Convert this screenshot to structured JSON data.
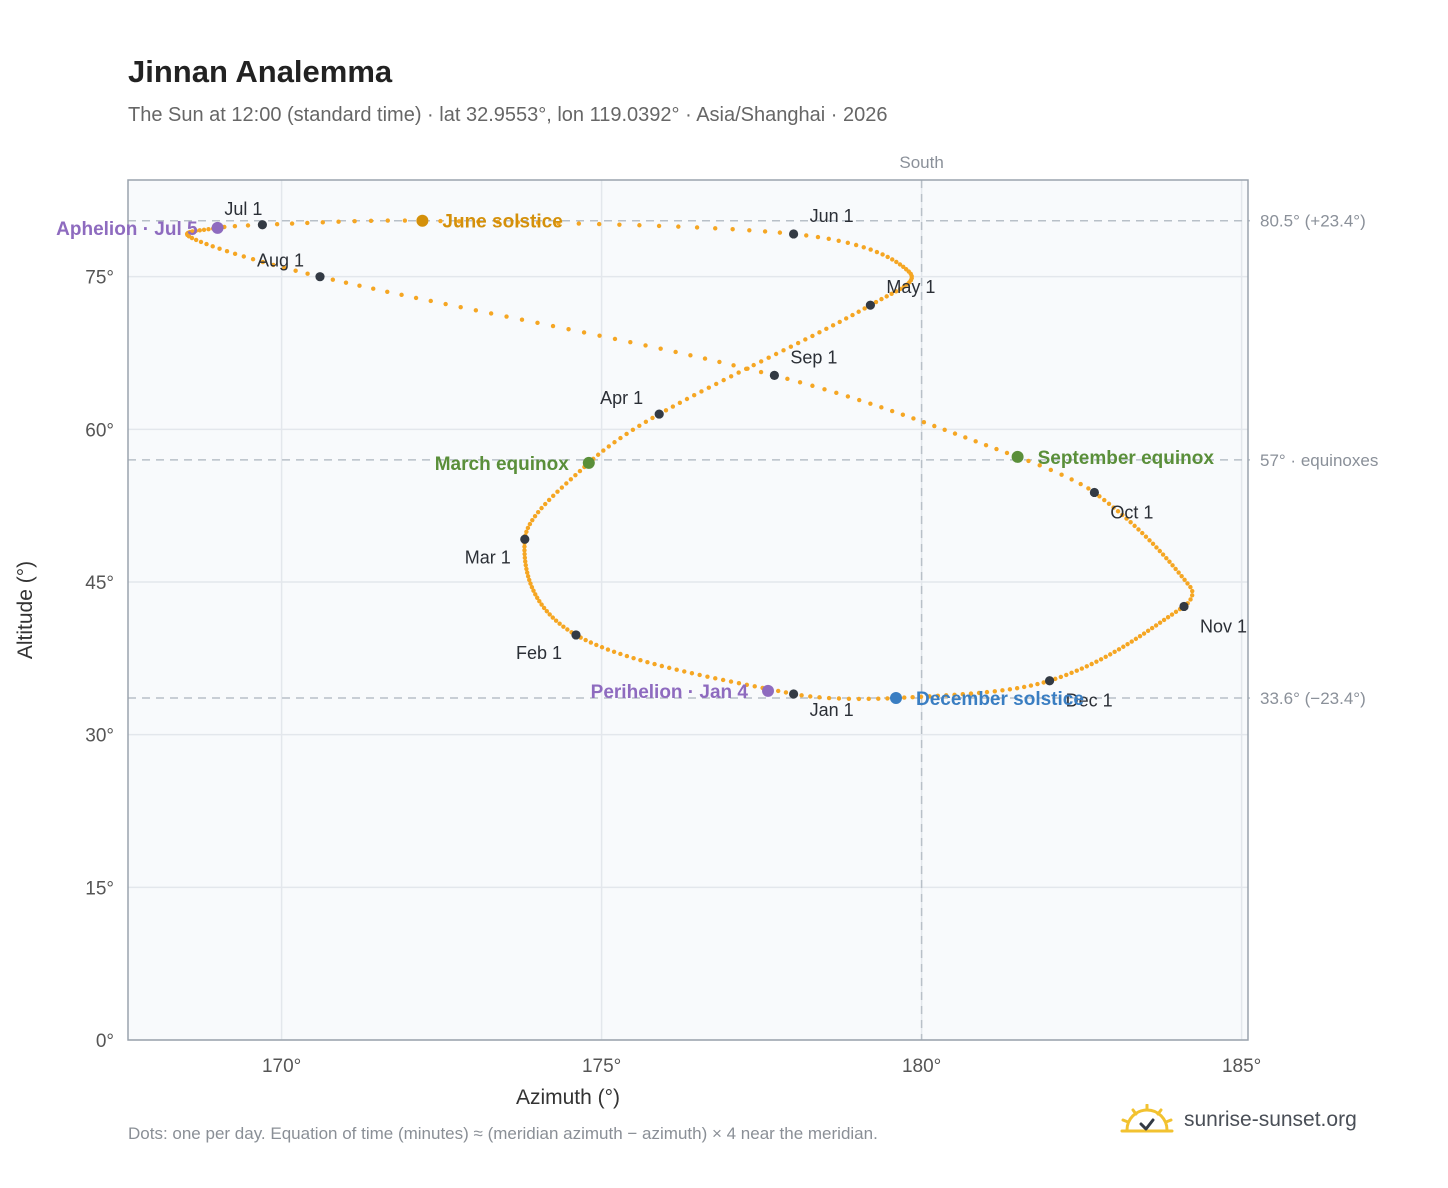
{
  "header": {
    "title": "Jinnan Analemma",
    "subtitle": "The Sun at 12:00 (standard time) · lat 32.9553°, lon 119.0392° · Asia/Shanghai · 2026"
  },
  "footer": {
    "note": "Dots: one per day. Equation of time (minutes) ≈ (meridian azimuth − azimuth) × 4 near the meridian.",
    "brand": "sunrise-sunset.org"
  },
  "colors": {
    "curve": "#f5a623",
    "month_dot": "#333a44",
    "solstice_june": "#d4900a",
    "solstice_december": "#3a7ec2",
    "equinox": "#5a8f3a",
    "apsis": "#8e6bbf",
    "grid": "#e3e7ec",
    "plot_bg": "#f8fafc",
    "ref_line": "#b8c0c8"
  },
  "chart_data": {
    "type": "scatter",
    "title": "Jinnan Analemma",
    "xlabel": "Azimuth (°)",
    "ylabel": "Altitude (°)",
    "xlim": [
      167.6,
      185.1
    ],
    "ylim": [
      0,
      84.5
    ],
    "x_ticks": [
      {
        "value": 170,
        "label": "170°"
      },
      {
        "value": 175,
        "label": "175°"
      },
      {
        "value": 180,
        "label": "180°"
      },
      {
        "value": 185,
        "label": "185°"
      }
    ],
    "y_ticks": [
      {
        "value": 0,
        "label": "0°"
      },
      {
        "value": 15,
        "label": "15°"
      },
      {
        "value": 30,
        "label": "30°"
      },
      {
        "value": 45,
        "label": "45°"
      },
      {
        "value": 60,
        "label": "60°"
      },
      {
        "value": 75,
        "label": "75°"
      }
    ],
    "grid": true,
    "reference_lines": [
      {
        "axis": "x",
        "value": 180,
        "label": "South"
      },
      {
        "axis": "y",
        "value": 80.5,
        "label": "80.5° (+23.4°)"
      },
      {
        "axis": "y",
        "value": 57,
        "label": "57° · equinoxes"
      },
      {
        "axis": "y",
        "value": 33.6,
        "label": "33.6° (−23.4°)"
      }
    ],
    "series": [
      {
        "name": "",
        "points_per": "day",
        "key_points": [
          {
            "day": 1,
            "az": 178.0,
            "alt": 34.0
          },
          {
            "day": 32,
            "az": 174.6,
            "alt": 39.8
          },
          {
            "day": 60,
            "az": 173.8,
            "alt": 49.2
          },
          {
            "day": 79,
            "az": 174.8,
            "alt": 56.7
          },
          {
            "day": 91,
            "az": 175.9,
            "alt": 61.5
          },
          {
            "day": 121,
            "az": 179.2,
            "alt": 72.2
          },
          {
            "day": 135,
            "az": 179.8,
            "alt": 75.5
          },
          {
            "day": 152,
            "az": 178.0,
            "alt": 79.2
          },
          {
            "day": 172,
            "az": 172.2,
            "alt": 80.5
          },
          {
            "day": 182,
            "az": 169.7,
            "alt": 80.1
          },
          {
            "day": 186,
            "az": 169.0,
            "alt": 79.8
          },
          {
            "day": 198,
            "az": 168.6,
            "alt": 78.8
          },
          {
            "day": 213,
            "az": 170.6,
            "alt": 75.0
          },
          {
            "day": 244,
            "az": 177.7,
            "alt": 65.3
          },
          {
            "day": 266,
            "az": 181.5,
            "alt": 57.3
          },
          {
            "day": 274,
            "az": 182.7,
            "alt": 53.8
          },
          {
            "day": 300,
            "az": 184.2,
            "alt": 44.5
          },
          {
            "day": 305,
            "az": 184.1,
            "alt": 42.6
          },
          {
            "day": 335,
            "az": 182.0,
            "alt": 35.3
          },
          {
            "day": 355,
            "az": 179.6,
            "alt": 33.6
          },
          {
            "day": 365,
            "az": 178.0,
            "alt": 34.0
          }
        ]
      }
    ],
    "month_markers": [
      {
        "label": "Jan 1",
        "az": 178.0,
        "alt": 34.0,
        "pos": "below"
      },
      {
        "label": "Feb 1",
        "az": 174.6,
        "alt": 39.8,
        "pos": "left-below"
      },
      {
        "label": "Mar 1",
        "az": 173.8,
        "alt": 49.2,
        "pos": "left-below"
      },
      {
        "label": "Apr 1",
        "az": 175.9,
        "alt": 61.5,
        "pos": "left-above"
      },
      {
        "label": "May 1",
        "az": 179.2,
        "alt": 72.2,
        "pos": "right-above"
      },
      {
        "label": "Jun 1",
        "az": 178.0,
        "alt": 79.2,
        "pos": "right-above"
      },
      {
        "label": "Jul 1",
        "az": 169.7,
        "alt": 80.1,
        "pos": "above"
      },
      {
        "label": "Aug 1",
        "az": 170.6,
        "alt": 75.0,
        "pos": "left-above"
      },
      {
        "label": "Sep 1",
        "az": 177.7,
        "alt": 65.3,
        "pos": "right-above"
      },
      {
        "label": "Oct 1",
        "az": 182.7,
        "alt": 53.8,
        "pos": "right-below"
      },
      {
        "label": "Nov 1",
        "az": 184.1,
        "alt": 42.6,
        "pos": "right-below"
      },
      {
        "label": "Dec 1",
        "az": 182.0,
        "alt": 35.3,
        "pos": "right-below"
      }
    ],
    "events": [
      {
        "label": "June solstice",
        "az": 172.2,
        "alt": 80.5,
        "color_key": "solstice_june",
        "side": "right"
      },
      {
        "label": "December solstice",
        "az": 179.6,
        "alt": 33.6,
        "color_key": "solstice_december",
        "side": "right"
      },
      {
        "label": "March equinox",
        "az": 174.8,
        "alt": 56.7,
        "color_key": "equinox",
        "side": "left"
      },
      {
        "label": "September equinox",
        "az": 181.5,
        "alt": 57.3,
        "color_key": "equinox",
        "side": "right"
      },
      {
        "label": "Perihelion · Jan 4",
        "az": 177.6,
        "alt": 34.3,
        "color_key": "apsis",
        "side": "left"
      },
      {
        "label": "Aphelion · Jul 5",
        "az": 169.0,
        "alt": 79.8,
        "color_key": "apsis",
        "side": "left"
      }
    ]
  }
}
